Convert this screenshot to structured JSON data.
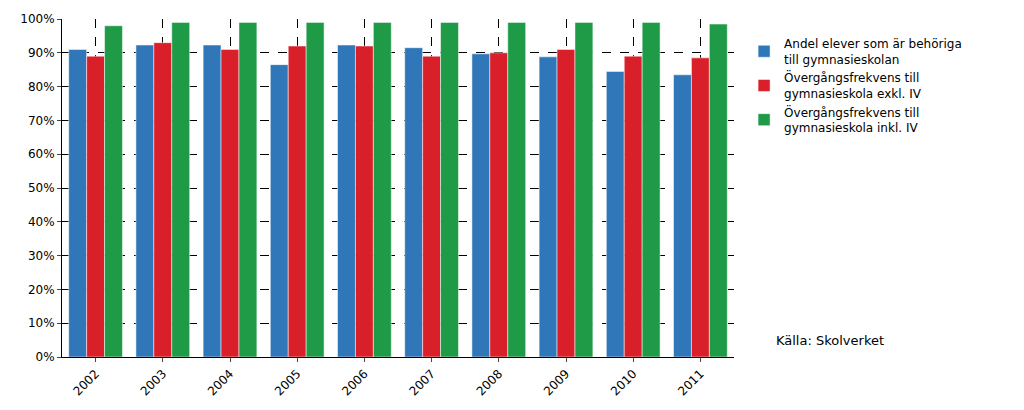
{
  "chart_data": {
    "type": "bar",
    "categories": [
      "2002",
      "2003",
      "2004",
      "2005",
      "2006",
      "2007",
      "2008",
      "2009",
      "2010",
      "2011"
    ],
    "series": [
      {
        "name": "Andel elever som är behöriga till gymnasieskolan",
        "color": "#2f77b8",
        "values": [
          91,
          92.3,
          92.3,
          86.5,
          92.3,
          91.5,
          89.7,
          88.8,
          84.5,
          83.5
        ]
      },
      {
        "name": "Övergångsfrekvens till gymnasieskola exkl. IV",
        "color": "#d9202a",
        "values": [
          89,
          93,
          91,
          92,
          92,
          89,
          90,
          91,
          89,
          88.5
        ]
      },
      {
        "name": "Övergångsfrekvens till gymnasieskola inkl. IV",
        "color": "#1f9a47",
        "values": [
          98,
          99,
          99,
          99,
          99,
          99,
          99,
          99,
          99,
          98.5
        ]
      }
    ],
    "ylim": [
      0,
      100
    ],
    "yticks": [
      {
        "value": 0,
        "label": "0%"
      },
      {
        "value": 10,
        "label": "10%"
      },
      {
        "value": 20,
        "label": "20%"
      },
      {
        "value": 30,
        "label": "30%"
      },
      {
        "value": 40,
        "label": "40%"
      },
      {
        "value": 50,
        "label": "50%"
      },
      {
        "value": 60,
        "label": "60%"
      },
      {
        "value": 70,
        "label": "70%"
      },
      {
        "value": 80,
        "label": "80%"
      },
      {
        "value": 90,
        "label": "90%"
      },
      {
        "value": 100,
        "label": "100%"
      }
    ],
    "grid": true,
    "legend": "right",
    "annotations": [
      "Källa: Skolverket"
    ]
  }
}
